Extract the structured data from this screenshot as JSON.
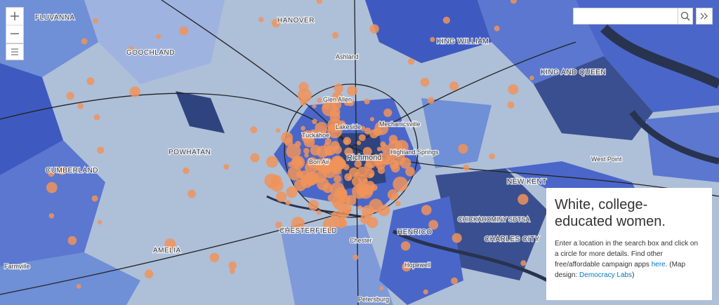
{
  "map": {
    "labels": [
      "FLUVANNA",
      "HANOVER",
      "KING WILLIAM",
      "GOOCHLAND",
      "Ashland",
      "KING AND QUEEN",
      "Glen Allen",
      "Mechanicsville",
      "Lakeside",
      "Tuckahoe",
      "POWHATAN",
      "Richmond",
      "Highland Springs",
      "Bon Air",
      "West Point",
      "CUMBERLAND",
      "NEW KENT",
      "CHESTERFIELD",
      "HENRICO",
      "CHICKAHOMINY SDTSA",
      "CHARLES CITY",
      "Chester",
      "AMELIA",
      "Farmville",
      "Hopewell",
      "Petersburg"
    ]
  },
  "panel": {
    "title": "White, college-educated women.",
    "description": [
      "Enter a location in the search box and click on a circle for more details. Find other free/affordable campaign apps",
      "here",
      ". (Map design:",
      "Democracy Labs",
      ")"
    ]
  }
}
